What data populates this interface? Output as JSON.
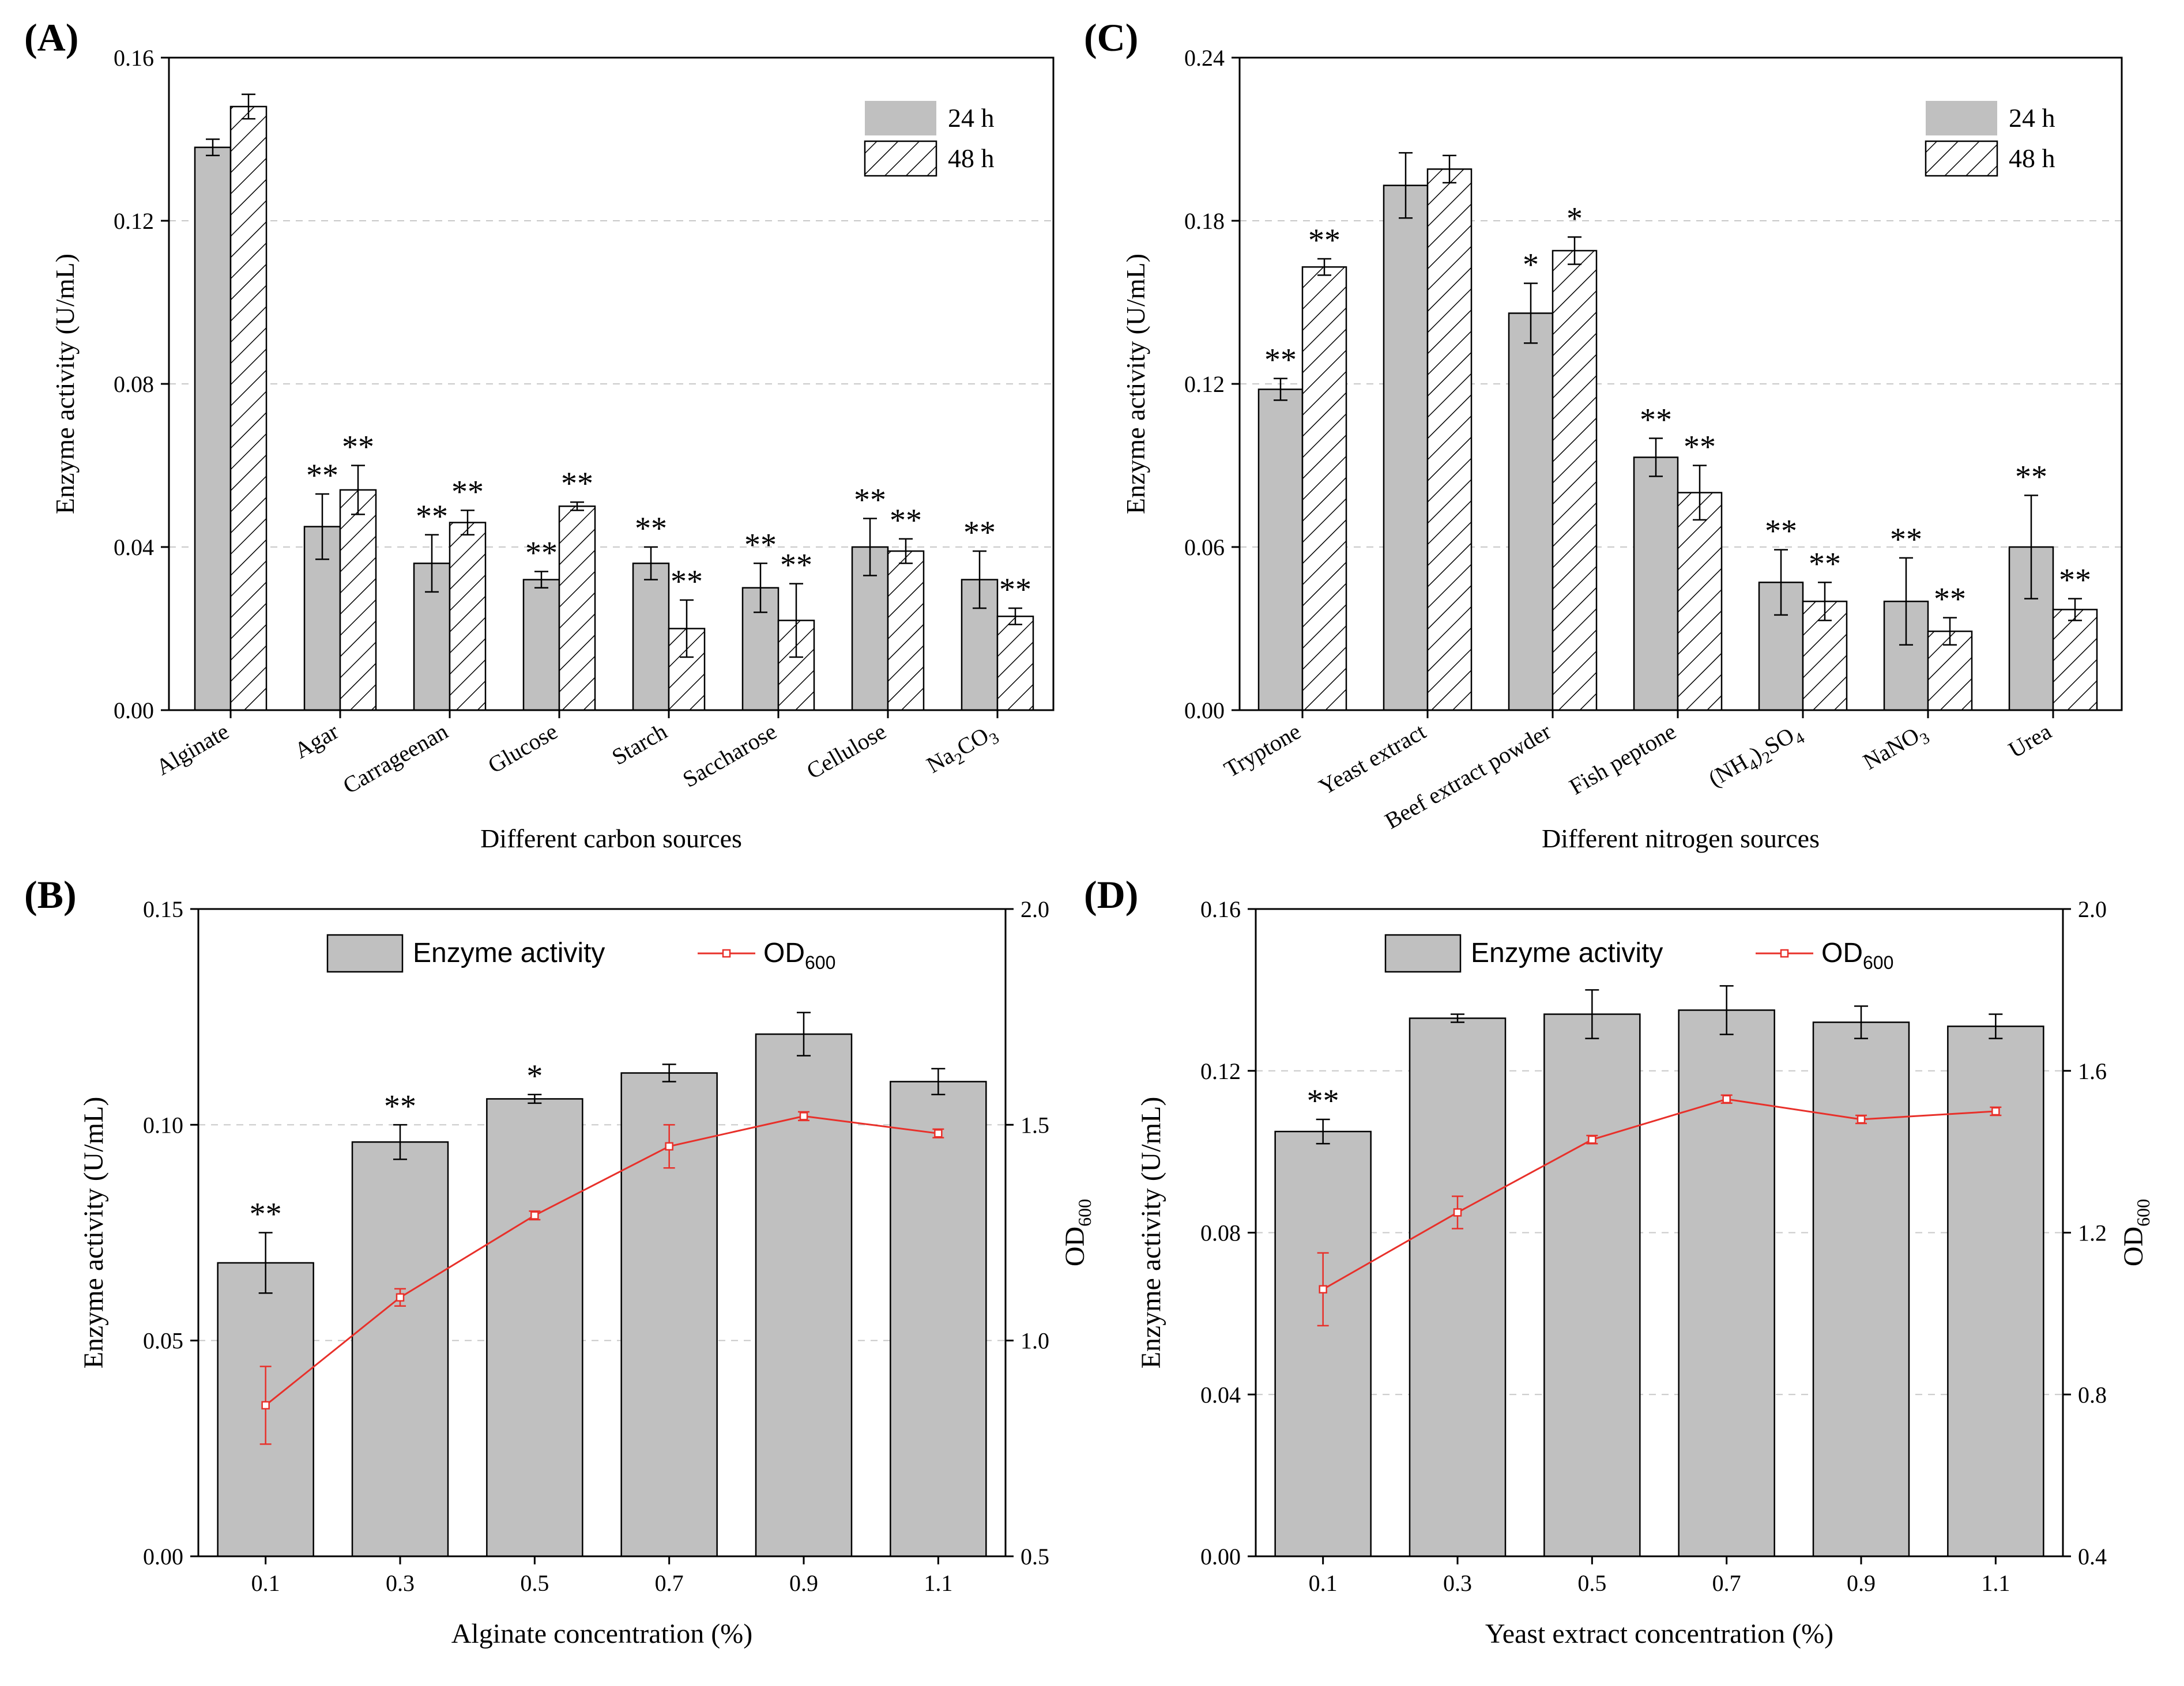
{
  "colors": {
    "bar": "#c0c0c0",
    "stroke": "#000000",
    "line": "#e8302a",
    "grid": "#c8c8c8"
  },
  "chart_data": [
    {
      "panel": "(A)",
      "type": "bar",
      "xlabel": "Different carbon sources",
      "ylabel": "Enzyme activity (U/mL)",
      "ylim": [
        0,
        0.16
      ],
      "yticks": [
        "0.00",
        "0.04",
        "0.08",
        "0.12",
        "0.16"
      ],
      "legend_placement": "top-right",
      "categories": [
        "Alginate",
        "Agar",
        "Carrageenan",
        "Glucose",
        "Starch",
        "Saccharose",
        "Cellulose",
        "Na2CO3"
      ],
      "tick_labels": [
        {
          "main": "Alginate"
        },
        {
          "main": "Agar"
        },
        {
          "main": "Carrageenan"
        },
        {
          "main": "Glucose"
        },
        {
          "main": "Starch"
        },
        {
          "main": "Saccharose"
        },
        {
          "main": "Cellulose"
        },
        {
          "p1": "Na",
          "s1": "2",
          "p2": "CO",
          "s2": "3"
        }
      ],
      "series": [
        {
          "name": "24 h",
          "pattern": "solid",
          "values": [
            0.138,
            0.045,
            0.036,
            0.032,
            0.036,
            0.03,
            0.04,
            0.032
          ],
          "errors": [
            0.002,
            0.008,
            0.007,
            0.002,
            0.004,
            0.006,
            0.007,
            0.007
          ],
          "sig": [
            "",
            "**",
            "**",
            "**",
            "**",
            "**",
            "**",
            "**"
          ]
        },
        {
          "name": "48 h",
          "pattern": "hatch",
          "values": [
            0.148,
            0.054,
            0.046,
            0.05,
            0.02,
            0.022,
            0.039,
            0.023
          ],
          "errors": [
            0.003,
            0.006,
            0.003,
            0.001,
            0.007,
            0.009,
            0.003,
            0.002
          ],
          "sig": [
            "",
            "**",
            "**",
            "**",
            "**",
            "**",
            "**",
            "**"
          ]
        }
      ]
    },
    {
      "panel": "(C)",
      "type": "bar",
      "xlabel": "Different nitrogen sources",
      "ylabel": "Enzyme activity (U/mL)",
      "ylim": [
        0,
        0.24
      ],
      "yticks": [
        "0.00",
        "0.06",
        "0.12",
        "0.18",
        "0.24"
      ],
      "legend_placement": "top-right",
      "categories": [
        "Tryptone",
        "Yeast extract",
        "Beef extract powder",
        "Fish peptone",
        "(NH4)2SO4",
        "NaNO3",
        "Urea"
      ],
      "tick_labels": [
        {
          "main": "Tryptone"
        },
        {
          "main": "Yeast extract"
        },
        {
          "main": "Beef extract powder"
        },
        {
          "main": "Fish peptone"
        },
        {
          "p1": "(NH",
          "s1": "4",
          "p2": ")",
          "s2": "2",
          "p3": "SO",
          "s3": "4"
        },
        {
          "main": "NaNO",
          "sub": "3"
        },
        {
          "main": "Urea"
        }
      ],
      "series": [
        {
          "name": "24 h",
          "pattern": "solid",
          "values": [
            0.118,
            0.193,
            0.146,
            0.093,
            0.047,
            0.04,
            0.06
          ],
          "errors": [
            0.004,
            0.012,
            0.011,
            0.007,
            0.012,
            0.016,
            0.019
          ],
          "sig": [
            "**",
            "",
            "*",
            "**",
            "**",
            "**",
            "**"
          ]
        },
        {
          "name": "48 h",
          "pattern": "hatch",
          "values": [
            0.163,
            0.199,
            0.169,
            0.08,
            0.04,
            0.029,
            0.037
          ],
          "errors": [
            0.003,
            0.005,
            0.005,
            0.01,
            0.007,
            0.005,
            0.004
          ],
          "sig": [
            "**",
            "",
            "*",
            "**",
            "**",
            "**",
            "**"
          ]
        }
      ]
    },
    {
      "panel": "(B)",
      "type": "bar+line",
      "xlabel": "Alginate concentration (%)",
      "ylabel": "Enzyme activity (U/mL)",
      "y2label": "OD",
      "y2label_sub": "600",
      "ylim": [
        0,
        0.15
      ],
      "yticks": [
        "0.00",
        "0.05",
        "0.10",
        "0.15"
      ],
      "y2lim": [
        0.5,
        2.0
      ],
      "y2ticks": [
        "0.5",
        "1.0",
        "1.5",
        "2.0"
      ],
      "categories": [
        "0.1",
        "0.3",
        "0.5",
        "0.7",
        "0.9",
        "1.1"
      ],
      "legend_bar": "Enzyme activity",
      "legend_line": "OD",
      "legend_line_sub": "600",
      "bars": {
        "values": [
          0.068,
          0.096,
          0.106,
          0.112,
          0.121,
          0.11
        ],
        "errors": [
          0.007,
          0.004,
          0.001,
          0.002,
          0.005,
          0.003
        ],
        "sig": [
          "**",
          "**",
          "*",
          "",
          "",
          ""
        ]
      },
      "line": {
        "values": [
          0.85,
          1.1,
          1.29,
          1.45,
          1.52,
          1.48
        ],
        "errors": [
          0.09,
          0.02,
          0.01,
          0.05,
          0.01,
          0.01
        ]
      }
    },
    {
      "panel": "(D)",
      "type": "bar+line",
      "xlabel": "Yeast extract concentration (%)",
      "ylabel": "Enzyme activity (U/mL)",
      "y2label": "OD",
      "y2label_sub": "600",
      "ylim": [
        0,
        0.16
      ],
      "yticks": [
        "0.00",
        "0.04",
        "0.08",
        "0.12",
        "0.16"
      ],
      "y2lim": [
        0.4,
        2.0
      ],
      "y2ticks": [
        "0.4",
        "0.8",
        "1.2",
        "1.6",
        "2.0"
      ],
      "categories": [
        "0.1",
        "0.3",
        "0.5",
        "0.7",
        "0.9",
        "1.1"
      ],
      "legend_bar": "Enzyme activity",
      "legend_line": "OD",
      "legend_line_sub": "600",
      "bars": {
        "values": [
          0.105,
          0.133,
          0.134,
          0.135,
          0.132,
          0.131
        ],
        "errors": [
          0.003,
          0.001,
          0.006,
          0.006,
          0.004,
          0.003
        ],
        "sig": [
          "**",
          "",
          "",
          "",
          "",
          ""
        ]
      },
      "line": {
        "values": [
          1.06,
          1.25,
          1.43,
          1.53,
          1.48,
          1.5
        ],
        "errors": [
          0.09,
          0.04,
          0.01,
          0.01,
          0.01,
          0.01
        ]
      }
    }
  ]
}
